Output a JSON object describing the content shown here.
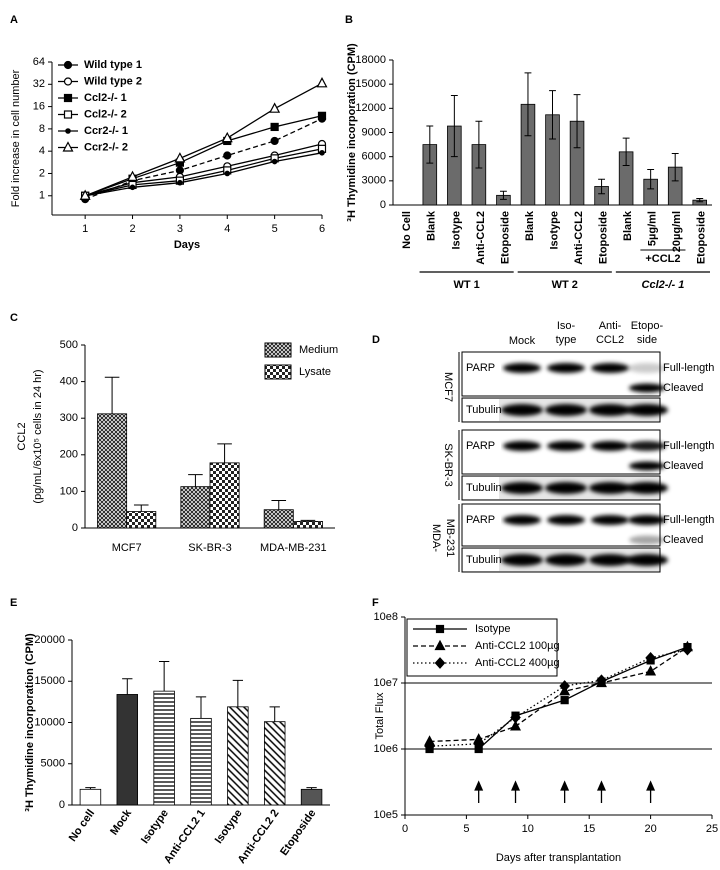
{
  "chart_data": [
    {
      "type": "line",
      "label": "A",
      "y_label": "Fold increase in cell number",
      "x_label": "Days",
      "x": [
        1,
        2,
        3,
        4,
        5,
        6
      ],
      "xlim": [
        0.3,
        6
      ],
      "xticks": [
        1,
        2,
        3,
        4,
        5,
        6
      ],
      "ylim": [
        0.55,
        64
      ],
      "yticks": [
        1,
        2,
        4,
        8,
        16,
        32,
        64
      ],
      "log_base": 2,
      "series": [
        {
          "name": "Wild type 1",
          "color": "#000000",
          "marker": "circle",
          "dash": "dashed",
          "values": [
            0.9,
            1.6,
            2.2,
            3.5,
            5.5,
            11
          ]
        },
        {
          "name": "Wild type 2",
          "color": "#000000",
          "marker": "circle-open",
          "dash": "solid",
          "values": [
            1,
            1.5,
            1.8,
            2.5,
            3.5,
            5
          ]
        },
        {
          "name": "Ccl2-/- 1",
          "color": "#000000",
          "marker": "square",
          "dash": "solid",
          "values": [
            1,
            1.7,
            2.8,
            5.5,
            8.5,
            12
          ]
        },
        {
          "name": "Ccl2-/- 2",
          "color": "#000000",
          "marker": "square-open",
          "dash": "solid",
          "values": [
            1,
            1.4,
            1.6,
            2.2,
            3.2,
            4.3
          ]
        },
        {
          "name": "Ccr2-/- 1",
          "color": "#000000",
          "marker": "dot",
          "dash": "solid",
          "values": [
            1,
            1.3,
            1.5,
            2,
            2.9,
            3.8
          ]
        },
        {
          "name": "Ccr2-/- 2",
          "color": "#000000",
          "marker": "triangle-open",
          "dash": "solid",
          "values": [
            1,
            1.8,
            3.2,
            6,
            15,
            33
          ]
        }
      ]
    },
    {
      "type": "bar",
      "label": "B",
      "y_label": "³H Thymidine incorporation (CPM)",
      "categories": [
        "No Cell",
        "Blank",
        "Isotype",
        "Anti-CCL2",
        "Etoposide",
        "Blank",
        "Isotype",
        "Anti-CCL2",
        "Etoposide",
        "Blank",
        "5µg/ml",
        "20µg/ml",
        "Etoposide"
      ],
      "values": [
        0,
        7500,
        9800,
        7500,
        1200,
        12500,
        11200,
        10400,
        2300,
        6600,
        3200,
        4700,
        600
      ],
      "errors": [
        0,
        2300,
        3800,
        2900,
        500,
        3900,
        3000,
        3300,
        900,
        1700,
        1200,
        1700,
        200
      ],
      "error_bars": "both",
      "color": "#6b6b6b",
      "ylim": [
        0,
        18000
      ],
      "yticks": [
        0,
        3000,
        6000,
        9000,
        12000,
        15000,
        18000
      ],
      "groups": [
        "WT 1",
        "WT 2",
        "Ccl2-/- 1"
      ],
      "annotation": "+CCL2"
    },
    {
      "type": "bar",
      "label": "C",
      "y_label": [
        "CCL2",
        "(pg/mL/6x10⁵ cells in 24 hr)"
      ],
      "categories": [
        "MCF7",
        "SK-BR-3",
        "MDA-MB-231"
      ],
      "error_bars": "upper",
      "series": [
        {
          "name": "Medium",
          "color": "crosshatch",
          "values": [
            312,
            113,
            50
          ],
          "errors": [
            100,
            33,
            25
          ]
        },
        {
          "name": "Lysate",
          "color": "checker",
          "values": [
            45,
            178,
            18
          ],
          "errors": [
            18,
            52,
            3
          ]
        }
      ],
      "ylim": [
        0,
        500
      ],
      "yticks": [
        0,
        100,
        200,
        300,
        400,
        500
      ]
    },
    {
      "type": "bar",
      "label": "E",
      "y_label": "³H Thymidine incorporation (CPM)",
      "categories": [
        "No cell",
        "Mock",
        "Isotype",
        "Anti-CCL2 1",
        "Isotype",
        "Anti-CCL2 2",
        "Etoposide"
      ],
      "values": [
        1900,
        13400,
        13800,
        10500,
        11900,
        10100,
        1900
      ],
      "errors": [
        200,
        1900,
        3600,
        2600,
        3200,
        1800,
        200
      ],
      "error_bars": "upper",
      "colors": [
        "#ffffff",
        "#333333",
        "hstripe",
        "hstripe",
        "dstripe",
        "dstripe",
        "#555555"
      ],
      "ylim": [
        0,
        20000
      ],
      "yticks": [
        0,
        5000,
        10000,
        15000,
        20000
      ]
    },
    {
      "type": "line",
      "label": "F",
      "y_label": "Total Flux",
      "x_label": "Days after transplantation",
      "x": [
        2,
        6,
        9,
        13,
        16,
        20,
        23
      ],
      "xlim": [
        0,
        25
      ],
      "xticks": [
        0,
        5,
        10,
        15,
        20,
        25
      ],
      "ylim": [
        100000,
        100000000
      ],
      "log_base": 10,
      "grid": true,
      "yticks": [
        {
          "value": 100000,
          "label": "10e5"
        },
        {
          "value": 1000000,
          "label": "10e6"
        },
        {
          "value": 10000000,
          "label": "10e7"
        },
        {
          "value": 100000000,
          "label": "10e8"
        }
      ],
      "arrows": [
        6,
        9,
        13,
        16,
        20
      ],
      "legend": "boxed",
      "series": [
        {
          "name": "Isotype",
          "color": "#000000",
          "marker": "square",
          "dash": "solid",
          "values": [
            1000000,
            1000000,
            3200000,
            5500000,
            10500000,
            22000000,
            35000000
          ]
        },
        {
          "name": "Anti-CCL2 100µg",
          "color": "#000000",
          "marker": "triangle",
          "dash": "dashed",
          "values": [
            1300000,
            1400000,
            2200000,
            7500000,
            10000000,
            15000000,
            35000000
          ]
        },
        {
          "name": "Anti-CCL2 400µg",
          "color": "#000000",
          "marker": "diamond",
          "dash": "dotted",
          "values": [
            1100000,
            1200000,
            3000000,
            9000000,
            11000000,
            24000000,
            32000000
          ]
        }
      ]
    }
  ],
  "blot": {
    "label": "D",
    "lanes": [
      [
        "Mock"
      ],
      [
        "Iso-",
        "type"
      ],
      [
        "Anti-",
        "CCL2"
      ],
      [
        "Etopo-",
        "side"
      ]
    ],
    "cell_lines": [
      [
        "MCF7"
      ],
      [
        "SK-BR-3"
      ],
      [
        "MDA-",
        "MB-231"
      ]
    ],
    "proteins": [
      "PARP",
      "Tubulin"
    ],
    "forms": [
      "Full-length",
      "Cleaved"
    ]
  }
}
